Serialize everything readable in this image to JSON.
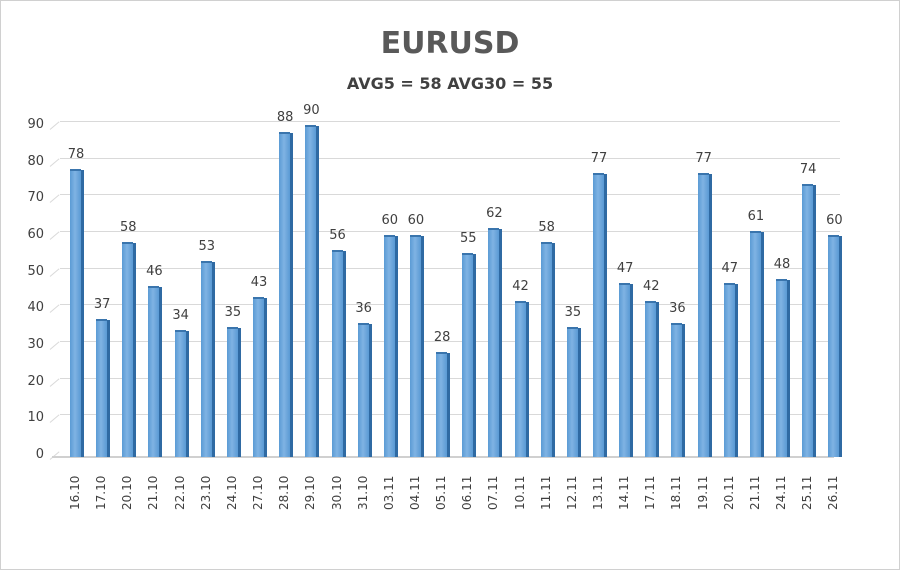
{
  "chart_data": {
    "type": "bar",
    "title": "EURUSD",
    "subtitle": "AVG5 = 58 AVG30 = 55",
    "xlabel": "",
    "ylabel": "",
    "ylim": [
      0,
      90
    ],
    "yticks": [
      0,
      10,
      20,
      30,
      40,
      50,
      60,
      70,
      80,
      90
    ],
    "grid": true,
    "legend": null,
    "categories": [
      "16.10",
      "17.10",
      "20.10",
      "21.10",
      "22.10",
      "23.10",
      "24.10",
      "27.10",
      "28.10",
      "29.10",
      "30.10",
      "31.10",
      "03.11",
      "04.11",
      "05.11",
      "06.11",
      "07.11",
      "10.11",
      "11.11",
      "12.11",
      "13.11",
      "14.11",
      "17.11",
      "18.11",
      "19.11",
      "20.11",
      "21.11",
      "24.11",
      "25.11",
      "26.11"
    ],
    "values": [
      78,
      37,
      58,
      46,
      34,
      53,
      35,
      43,
      88,
      90,
      56,
      36,
      60,
      60,
      28,
      55,
      62,
      42,
      58,
      35,
      77,
      47,
      42,
      36,
      77,
      47,
      61,
      48,
      74,
      60
    ],
    "bar_color": "#5b9bd5",
    "data_labels": true
  }
}
